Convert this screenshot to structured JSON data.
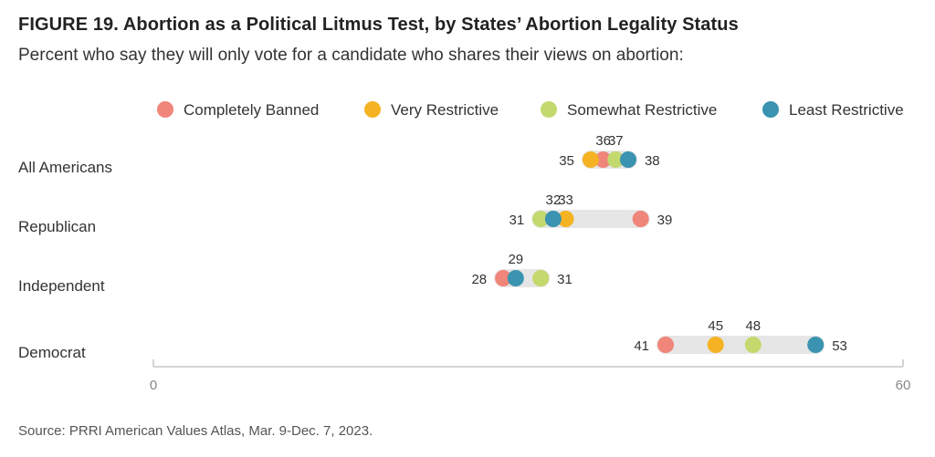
{
  "title": "FIGURE 19. Abortion as a Political Litmus Test, by States’ Abortion Legality Status",
  "subtitle": "Percent who say they will only vote for a candidate who shares their views on abortion:",
  "source": "Source: PRRI American Values Atlas, Mar. 9-Dec. 7, 2023.",
  "chart_data": {
    "type": "dot",
    "categories": [
      "All Americans",
      "Republican",
      "Independent",
      "Democrat"
    ],
    "series": [
      {
        "name": "Completely Banned",
        "color": "#F0857A",
        "values": [
          36,
          39,
          28,
          41
        ]
      },
      {
        "name": "Very Restrictive",
        "color": "#F5B324",
        "values": [
          35,
          33,
          31,
          45
        ]
      },
      {
        "name": "Somewhat Restrictive",
        "color": "#C3D96E",
        "values": [
          37,
          31,
          31,
          48
        ]
      },
      {
        "name": "Least Restrictive",
        "color": "#3A93B0",
        "values": [
          38,
          32,
          29,
          53
        ]
      }
    ],
    "point_labels": [
      [
        {
          "text": "36",
          "series": 0,
          "pos": "above"
        },
        {
          "text": "37",
          "series": 2,
          "pos": "above"
        },
        {
          "text": "35",
          "series": 1,
          "pos": "left"
        },
        {
          "text": "38",
          "series": 3,
          "pos": "right"
        }
      ],
      [
        {
          "text": "32",
          "series": 3,
          "pos": "above"
        },
        {
          "text": "33",
          "series": 1,
          "pos": "above"
        },
        {
          "text": "31",
          "series": 2,
          "pos": "left"
        },
        {
          "text": "39",
          "series": 0,
          "pos": "right"
        }
      ],
      [
        {
          "text": "29",
          "series": 3,
          "pos": "above"
        },
        {
          "text": "28",
          "series": 0,
          "pos": "left"
        },
        {
          "text": "31",
          "series": 1,
          "pos": "right"
        }
      ],
      [
        {
          "text": "45",
          "series": 1,
          "pos": "above"
        },
        {
          "text": "48",
          "series": 2,
          "pos": "above"
        },
        {
          "text": "41",
          "series": 0,
          "pos": "left"
        },
        {
          "text": "53",
          "series": 3,
          "pos": "right"
        }
      ]
    ],
    "xlim": [
      0,
      60
    ],
    "xticks": [
      0,
      60
    ],
    "legend_position": "top-right",
    "grid": false
  }
}
